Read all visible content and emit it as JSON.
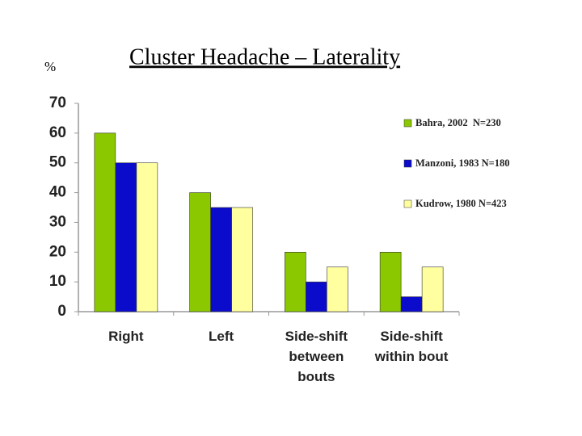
{
  "chart_data": {
    "type": "bar",
    "title": "Cluster Headache – Laterality",
    "ylabel": "%",
    "categories": [
      "Right",
      "Left",
      "Side-shift between bouts",
      "Side-shift within bout"
    ],
    "series": [
      {
        "name": "Bahra, 2002  N=230",
        "color": "#8cc800",
        "values": [
          60,
          40,
          20,
          20
        ]
      },
      {
        "name": "Manzoni, 1983 N=180",
        "color": "#0b0bcc",
        "values": [
          50,
          35,
          10,
          5
        ]
      },
      {
        "name": "Kudrow, 1980 N=423",
        "color": "#ffffa0",
        "values": [
          50,
          35,
          15,
          15
        ]
      }
    ],
    "ylim": [
      0,
      70
    ],
    "yticks": [
      0,
      10,
      20,
      30,
      40,
      50,
      60,
      70
    ],
    "grid": false,
    "legend": "right"
  }
}
